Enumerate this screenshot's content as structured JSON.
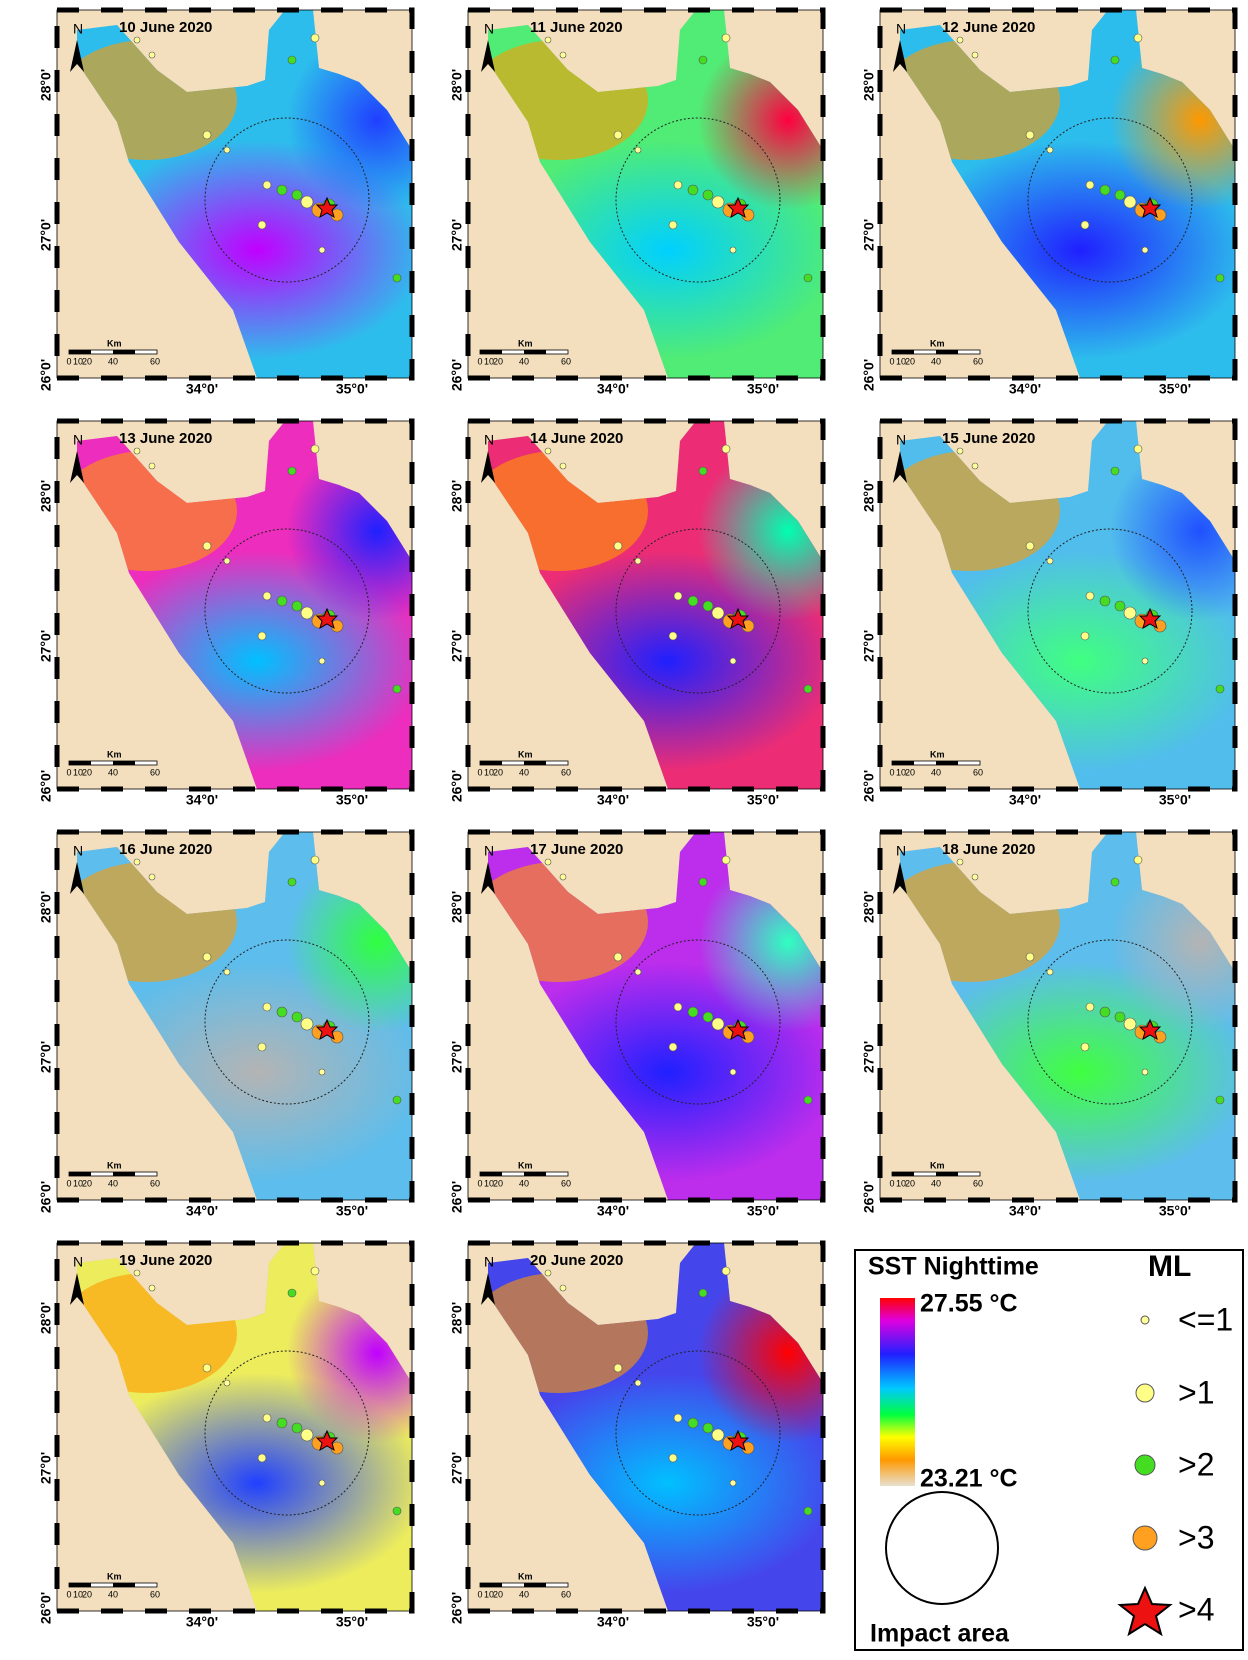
{
  "panels": [
    {
      "title": "10 June 2020"
    },
    {
      "title": "11 June 2020"
    },
    {
      "title": "12 June 2020"
    },
    {
      "title": "13 June 2020"
    },
    {
      "title": "14 June 2020"
    },
    {
      "title": "15 June 2020"
    },
    {
      "title": "16 June 2020"
    },
    {
      "title": "17 June 2020"
    },
    {
      "title": "18 June 2020"
    },
    {
      "title": "19 June 2020"
    },
    {
      "title": "20 June 2020"
    }
  ],
  "map": {
    "north": "N",
    "lat_labels": [
      "28°0'",
      "27°0'",
      "26°0'"
    ],
    "lon_labels": [
      "34°0'",
      "35°0'"
    ],
    "scale_unit": "Km",
    "scale_ticks": [
      "0",
      "10",
      "20",
      "40",
      "60"
    ]
  },
  "legend": {
    "sst_title": "SST Nighttime",
    "sst_max": "27.55 °C",
    "sst_min": "23.21 °C",
    "impact_label": "Impact area",
    "ml_title": "ML",
    "ml_classes": [
      "<=1",
      ">1",
      ">2",
      ">3",
      ">4"
    ]
  }
}
